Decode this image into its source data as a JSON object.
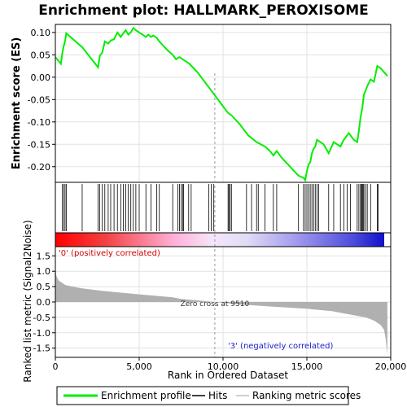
{
  "chart_data": {
    "type": "line",
    "title": "Enrichment plot: HALLMARK_PEROXISOME",
    "xlabel": "Rank in Ordered Dataset",
    "ylabel_top": "Enrichment score (ES)",
    "ylabel_bottom": "Ranked list metric (Signal2Noise)",
    "x_range": [
      0,
      20000
    ],
    "x_ticks": [
      0,
      5000,
      10000,
      15000,
      20000
    ],
    "x_tick_labels": [
      "0",
      "5,000",
      "10,000",
      "15,000",
      "20,000"
    ],
    "es_ylim": [
      -0.235,
      0.118
    ],
    "es_yticks": [
      0.1,
      0.05,
      0.0,
      -0.05,
      -0.1,
      -0.15,
      -0.2
    ],
    "es_ytick_labels": [
      "0.10",
      "0.05",
      "0.00",
      "-0.05",
      "-0.10",
      "-0.15",
      "-0.20"
    ],
    "metric_ylim": [
      -1.8,
      1.8
    ],
    "metric_yticks": [
      1.5,
      1.0,
      0.5,
      0.0,
      -0.5,
      -1.0,
      -1.5
    ],
    "metric_ytick_labels": [
      "1.5",
      "1.0",
      "0.5",
      "0.0",
      "-0.5",
      "-1.0",
      "-1.5"
    ],
    "zero_cross_rank": 9510,
    "zero_cross_label": "Zero cross at 9510",
    "pos_label": "'0' (positively correlated)",
    "neg_label": "'3' (negatively correlated)",
    "grid": true,
    "series": [
      {
        "name": "Enrichment profile",
        "color": "#00ee00",
        "x": [
          0,
          330,
          420,
          500,
          580,
          650,
          1600,
          2550,
          2650,
          2800,
          2950,
          3150,
          3300,
          3500,
          3700,
          3900,
          4050,
          4200,
          4350,
          4500,
          4650,
          4800,
          5000,
          5200,
          5400,
          5550,
          5700,
          5850,
          6050,
          6200,
          6700,
          7000,
          7200,
          7400,
          7600,
          8000,
          8500,
          9000,
          9500,
          10000,
          10300,
          10500,
          11000,
          11500,
          12000,
          12500,
          12800,
          13000,
          13200,
          13500,
          14000,
          14500,
          14800,
          14900,
          15000,
          15100,
          15200,
          15300,
          15400,
          15500,
          15600,
          16000,
          16300,
          16600,
          17000,
          17200,
          17500,
          17800,
          18000,
          18100,
          18200,
          18300,
          18400,
          18600,
          18800,
          19000,
          19200,
          19400,
          19800
        ],
        "y": [
          0.045,
          0.03,
          0.055,
          0.07,
          0.08,
          0.098,
          0.067,
          0.022,
          0.048,
          0.055,
          0.08,
          0.075,
          0.082,
          0.085,
          0.1,
          0.09,
          0.098,
          0.105,
          0.095,
          0.1,
          0.11,
          0.105,
          0.1,
          0.095,
          0.09,
          0.095,
          0.09,
          0.093,
          0.088,
          0.08,
          0.06,
          0.05,
          0.04,
          0.045,
          0.04,
          0.03,
          0.01,
          -0.015,
          -0.04,
          -0.065,
          -0.08,
          -0.085,
          -0.105,
          -0.13,
          -0.145,
          -0.155,
          -0.165,
          -0.175,
          -0.165,
          -0.18,
          -0.2,
          -0.22,
          -0.225,
          -0.23,
          -0.21,
          -0.195,
          -0.19,
          -0.17,
          -0.16,
          -0.155,
          -0.14,
          -0.15,
          -0.17,
          -0.145,
          -0.155,
          -0.14,
          -0.125,
          -0.14,
          -0.145,
          -0.12,
          -0.09,
          -0.07,
          -0.04,
          -0.02,
          -0.005,
          -0.01,
          0.025,
          0.02,
          0.003
        ]
      },
      {
        "name": "Hits",
        "color": "#000000",
        "positions": [
          420,
          500,
          580,
          650,
          1600,
          2550,
          2650,
          2800,
          2950,
          3150,
          3300,
          3500,
          3700,
          3900,
          4050,
          4200,
          4350,
          4500,
          4650,
          4800,
          5000,
          5400,
          5700,
          6050,
          6200,
          7000,
          7300,
          7400,
          7500,
          7600,
          7650,
          7950,
          8100,
          9150,
          9300,
          9450,
          10300,
          10350,
          10420,
          10500,
          11400,
          11700,
          12000,
          12100,
          12500,
          13000,
          13200,
          14500,
          14800,
          14900,
          15000,
          15100,
          15200,
          15300,
          15400,
          15500,
          15600,
          15700,
          16300,
          16600,
          17000,
          17200,
          17400,
          17600,
          18000,
          18100,
          18200,
          18250,
          18300,
          18350,
          18400,
          18500,
          18600,
          18800,
          19200,
          19250
        ]
      },
      {
        "name": "Ranking metric scores",
        "color": "#b0b0b0",
        "x": [
          0,
          60,
          200,
          600,
          1500,
          3000,
          5000,
          7000,
          7500,
          9510,
          11000,
          13000,
          15000,
          16500,
          17500,
          18500,
          19000,
          19400,
          19600,
          19700,
          19800
        ],
        "y": [
          1.2,
          0.85,
          0.7,
          0.55,
          0.45,
          0.35,
          0.25,
          0.15,
          0.1,
          0.0,
          -0.08,
          -0.15,
          -0.22,
          -0.3,
          -0.4,
          -0.5,
          -0.6,
          -0.75,
          -0.9,
          -1.2,
          -1.7
        ]
      }
    ]
  }
}
